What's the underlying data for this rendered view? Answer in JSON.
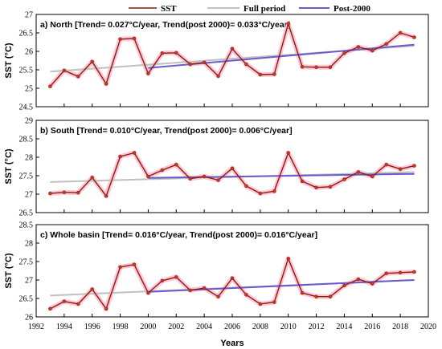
{
  "legend": {
    "sst": "SST",
    "full": "Full period",
    "post": "Post-2000"
  },
  "colors": {
    "sst_line": "#8b1a0a",
    "sst_marker": "#c0392b",
    "sst_glow": "#ffb3c8",
    "full_trend": "#c0c0c0",
    "post_trend": "#6a5acd"
  },
  "x_axis": {
    "label": "Years",
    "range": [
      1992,
      2020
    ],
    "ticks": [
      1992,
      1994,
      1996,
      1998,
      2000,
      2002,
      2004,
      2006,
      2008,
      2010,
      2012,
      2014,
      2016,
      2018,
      2020
    ]
  },
  "chart_data": [
    {
      "type": "line",
      "title": "a) North [Trend= 0.027°C/year, Trend(post 2000)= 0.033°C/year]",
      "ylabel": "SST (°C)",
      "ylim": [
        24.5,
        27
      ],
      "yticks": [
        24.5,
        25,
        25.5,
        26,
        26.5,
        27
      ],
      "x": [
        1993,
        1994,
        1995,
        1996,
        1997,
        1998,
        1999,
        2000,
        2001,
        2002,
        2003,
        2004,
        2005,
        2006,
        2007,
        2008,
        2009,
        2010,
        2011,
        2012,
        2013,
        2014,
        2015,
        2016,
        2017,
        2018,
        2019
      ],
      "series": [
        {
          "name": "SST",
          "values": [
            25.05,
            25.48,
            25.32,
            25.72,
            25.12,
            26.33,
            26.35,
            25.4,
            25.95,
            25.96,
            25.65,
            25.7,
            25.33,
            26.07,
            25.65,
            25.37,
            25.38,
            26.75,
            25.58,
            25.57,
            25.57,
            25.95,
            26.12,
            26.02,
            26.2,
            26.5,
            26.38
          ]
        },
        {
          "name": "Full period",
          "x": [
            1993,
            2019
          ],
          "values": [
            25.45,
            26.15
          ]
        },
        {
          "name": "Post-2000",
          "x": [
            2000,
            2019
          ],
          "values": [
            25.55,
            26.18
          ]
        }
      ]
    },
    {
      "type": "line",
      "title": "b) South [Trend= 0.010°C/year, Trend(post 2000)= 0.006°C/year]",
      "ylabel": "SST (°C)",
      "ylim": [
        26.5,
        29
      ],
      "yticks": [
        26.5,
        27,
        27.5,
        28,
        28.5,
        29
      ],
      "x": [
        1993,
        1994,
        1995,
        1996,
        1997,
        1998,
        1999,
        2000,
        2001,
        2002,
        2003,
        2004,
        2005,
        2006,
        2007,
        2008,
        2009,
        2010,
        2011,
        2012,
        2013,
        2014,
        2015,
        2016,
        2017,
        2018,
        2019
      ],
      "series": [
        {
          "name": "SST",
          "values": [
            27.02,
            27.05,
            27.04,
            27.45,
            26.95,
            28.02,
            28.12,
            27.48,
            27.65,
            27.8,
            27.42,
            27.48,
            27.38,
            27.7,
            27.22,
            27.02,
            27.08,
            28.12,
            27.35,
            27.18,
            27.2,
            27.4,
            27.6,
            27.48,
            27.8,
            27.68,
            27.77
          ]
        },
        {
          "name": "Full period",
          "x": [
            1993,
            2019
          ],
          "values": [
            27.33,
            27.6
          ]
        },
        {
          "name": "Post-2000",
          "x": [
            2000,
            2019
          ],
          "values": [
            27.44,
            27.55
          ]
        }
      ]
    },
    {
      "type": "line",
      "title": "c) Whole basin [Trend= 0.016°C/year, Trend(post 2000)= 0.016°C/year]",
      "ylabel": "SST (°C)",
      "ylim": [
        26,
        28.5
      ],
      "yticks": [
        26,
        26.5,
        27,
        27.5,
        28,
        28.5
      ],
      "x": [
        1993,
        1994,
        1995,
        1996,
        1997,
        1998,
        1999,
        2000,
        2001,
        2002,
        2003,
        2004,
        2005,
        2006,
        2007,
        2008,
        2009,
        2010,
        2011,
        2012,
        2013,
        2014,
        2015,
        2016,
        2017,
        2018,
        2019
      ],
      "series": [
        {
          "name": "SST",
          "values": [
            26.22,
            26.42,
            26.35,
            26.75,
            26.22,
            27.35,
            27.42,
            26.65,
            26.98,
            27.08,
            26.72,
            26.78,
            26.55,
            27.05,
            26.6,
            26.35,
            26.4,
            27.58,
            26.65,
            26.55,
            26.55,
            26.85,
            27.02,
            26.9,
            27.18,
            27.2,
            27.22
          ]
        },
        {
          "name": "Full period",
          "x": [
            1993,
            2019
          ],
          "values": [
            26.58,
            27.0
          ]
        },
        {
          "name": "Post-2000",
          "x": [
            2000,
            2019
          ],
          "values": [
            26.68,
            27.0
          ]
        }
      ]
    }
  ]
}
